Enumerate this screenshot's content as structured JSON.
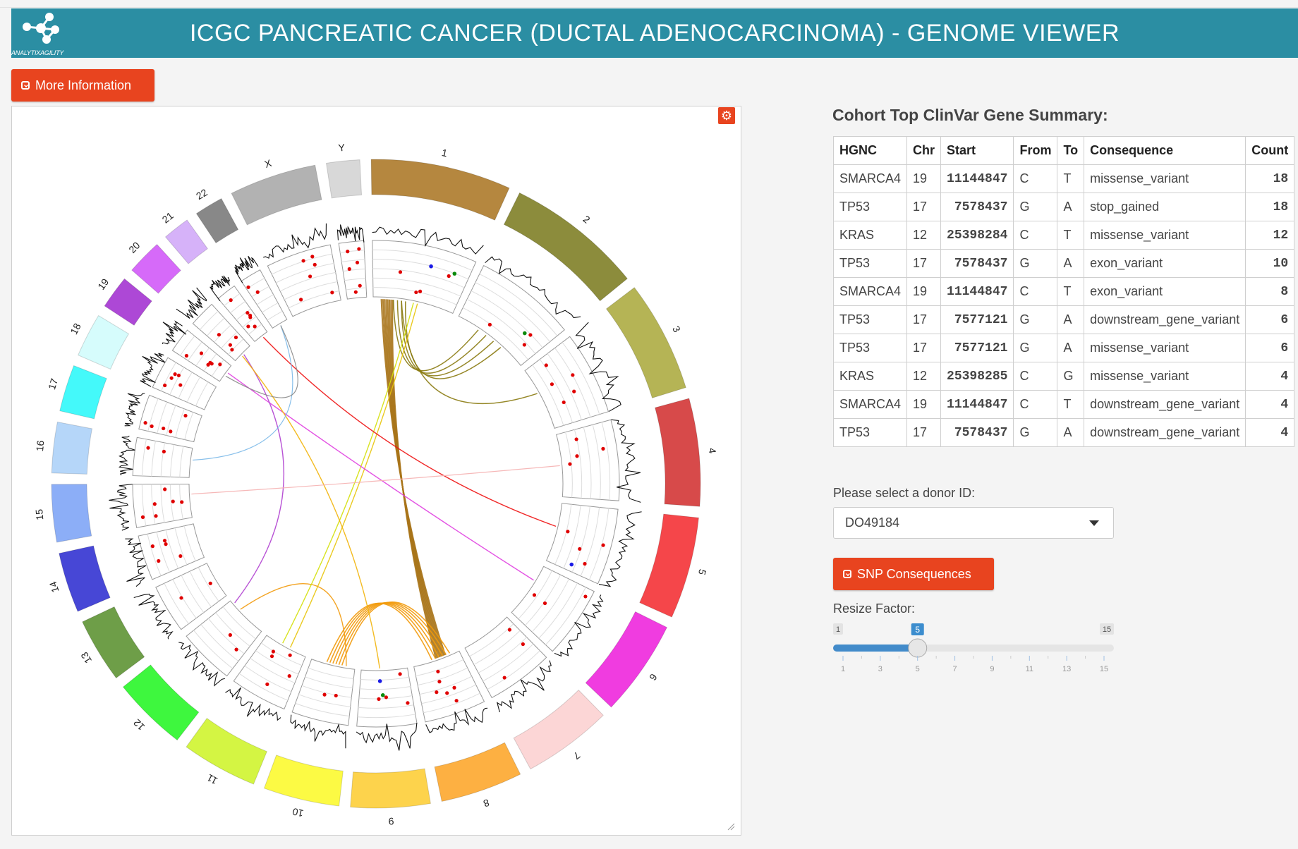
{
  "header": {
    "title": "ICGC PANCREATIC CANCER (DUCTAL ADENOCARCINOMA) - GENOME VIEWER",
    "logo_text": "ANALYTIXAGILITY"
  },
  "buttons": {
    "more_info": "More Information",
    "snp": "SNP Consequences"
  },
  "summary": {
    "title": "Cohort Top ClinVar Gene Summary:",
    "columns": [
      "HGNC",
      "Chr",
      "Start",
      "From",
      "To",
      "Consequence",
      "Count"
    ],
    "rows": [
      [
        "SMARCA4",
        "19",
        "11144847",
        "C",
        "T",
        "missense_variant",
        "18"
      ],
      [
        "TP53",
        "17",
        "7578437",
        "G",
        "A",
        "stop_gained",
        "18"
      ],
      [
        "KRAS",
        "12",
        "25398284",
        "C",
        "T",
        "missense_variant",
        "12"
      ],
      [
        "TP53",
        "17",
        "7578437",
        "G",
        "A",
        "exon_variant",
        "10"
      ],
      [
        "SMARCA4",
        "19",
        "11144847",
        "C",
        "T",
        "exon_variant",
        "8"
      ],
      [
        "TP53",
        "17",
        "7577121",
        "G",
        "A",
        "downstream_gene_variant",
        "6"
      ],
      [
        "TP53",
        "17",
        "7577121",
        "G",
        "A",
        "missense_variant",
        "6"
      ],
      [
        "KRAS",
        "12",
        "25398285",
        "C",
        "G",
        "missense_variant",
        "4"
      ],
      [
        "SMARCA4",
        "19",
        "11144847",
        "C",
        "T",
        "downstream_gene_variant",
        "4"
      ],
      [
        "TP53",
        "17",
        "7578437",
        "G",
        "A",
        "downstream_gene_variant",
        "4"
      ]
    ]
  },
  "donor": {
    "label": "Please select a donor ID:",
    "value": "DO49184"
  },
  "resize": {
    "label": "Resize Factor:",
    "min": 1,
    "max": 15,
    "value": 5,
    "min_label": "1",
    "max_label": "15",
    "value_label": "5",
    "ticks": [
      "1",
      "3",
      "5",
      "7",
      "9",
      "11",
      "13",
      "15"
    ]
  },
  "circos": {
    "chromosomes": [
      {
        "name": "1",
        "size": 249,
        "color": "#b5873f"
      },
      {
        "name": "2",
        "size": 243,
        "color": "#8c8c3c"
      },
      {
        "name": "3",
        "size": 198,
        "color": "#b5b455"
      },
      {
        "name": "4",
        "size": 191,
        "color": "#d74a4a"
      },
      {
        "name": "5",
        "size": 181,
        "color": "#f5464a"
      },
      {
        "name": "6",
        "size": 171,
        "color": "#f03ce0"
      },
      {
        "name": "7",
        "size": 159,
        "color": "#fcd6d6"
      },
      {
        "name": "8",
        "size": 146,
        "color": "#fdb042"
      },
      {
        "name": "9",
        "size": 141,
        "color": "#fdd34c"
      },
      {
        "name": "10",
        "size": 135,
        "color": "#fcfa44"
      },
      {
        "name": "11",
        "size": 135,
        "color": "#d4f543"
      },
      {
        "name": "12",
        "size": 133,
        "color": "#3ef73e"
      },
      {
        "name": "13",
        "size": 115,
        "color": "#6e9e48"
      },
      {
        "name": "14",
        "size": 107,
        "color": "#4747d6"
      },
      {
        "name": "15",
        "size": 102,
        "color": "#8caef7"
      },
      {
        "name": "16",
        "size": 90,
        "color": "#b5d6f9"
      },
      {
        "name": "17",
        "size": 83,
        "color": "#44f9fa"
      },
      {
        "name": "18",
        "size": 78,
        "color": "#d6fcfc"
      },
      {
        "name": "19",
        "size": 59,
        "color": "#ad48d6"
      },
      {
        "name": "20",
        "size": 63,
        "color": "#d66af9"
      },
      {
        "name": "21",
        "size": 48,
        "color": "#d6b2f9"
      },
      {
        "name": "22",
        "size": 51,
        "color": "#888888"
      },
      {
        "name": "X",
        "size": 155,
        "color": "#b2b2b2"
      },
      {
        "name": "Y",
        "size": 59,
        "color": "#d8d8d8"
      }
    ]
  }
}
